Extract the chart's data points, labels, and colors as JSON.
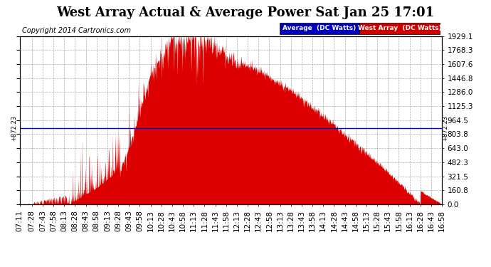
{
  "title": "West Array Actual & Average Power Sat Jan 25 17:01",
  "copyright": "Copyright 2014 Cartronics.com",
  "legend_items": [
    "Average  (DC Watts)",
    "West Array  (DC Watts)"
  ],
  "legend_colors": [
    "#0000bb",
    "#cc0000"
  ],
  "y_tick_labels": [
    "0.0",
    "160.8",
    "321.5",
    "482.3",
    "643.0",
    "803.8",
    "964.5",
    "1125.3",
    "1286.0",
    "1446.8",
    "1607.6",
    "1768.3",
    "1929.1"
  ],
  "y_tick_values": [
    0.0,
    160.8,
    321.5,
    482.3,
    643.0,
    803.8,
    964.5,
    1125.3,
    1286.0,
    1446.8,
    1607.6,
    1768.3,
    1929.1
  ],
  "ymax": 1929.1,
  "ymin": 0.0,
  "average_line_value": 872.23,
  "average_label": "872.23",
  "background_color": "#ffffff",
  "plot_bg_color": "#ffffff",
  "grid_color": "#999999",
  "fill_color": "#dd0000",
  "avg_line_color": "#0000cc",
  "title_fontsize": 13,
  "copyright_fontsize": 7,
  "tick_fontsize": 7.5,
  "x_tick_times": [
    "07:11",
    "07:28",
    "07:43",
    "07:58",
    "08:13",
    "08:28",
    "08:43",
    "08:58",
    "09:13",
    "09:28",
    "09:43",
    "09:58",
    "10:13",
    "10:28",
    "10:43",
    "10:58",
    "11:13",
    "11:28",
    "11:43",
    "11:58",
    "12:13",
    "12:28",
    "12:43",
    "12:58",
    "13:13",
    "13:28",
    "13:43",
    "13:58",
    "14:13",
    "14:28",
    "14:43",
    "14:58",
    "15:13",
    "15:28",
    "15:43",
    "15:58",
    "16:13",
    "16:28",
    "16:43",
    "16:58"
  ]
}
